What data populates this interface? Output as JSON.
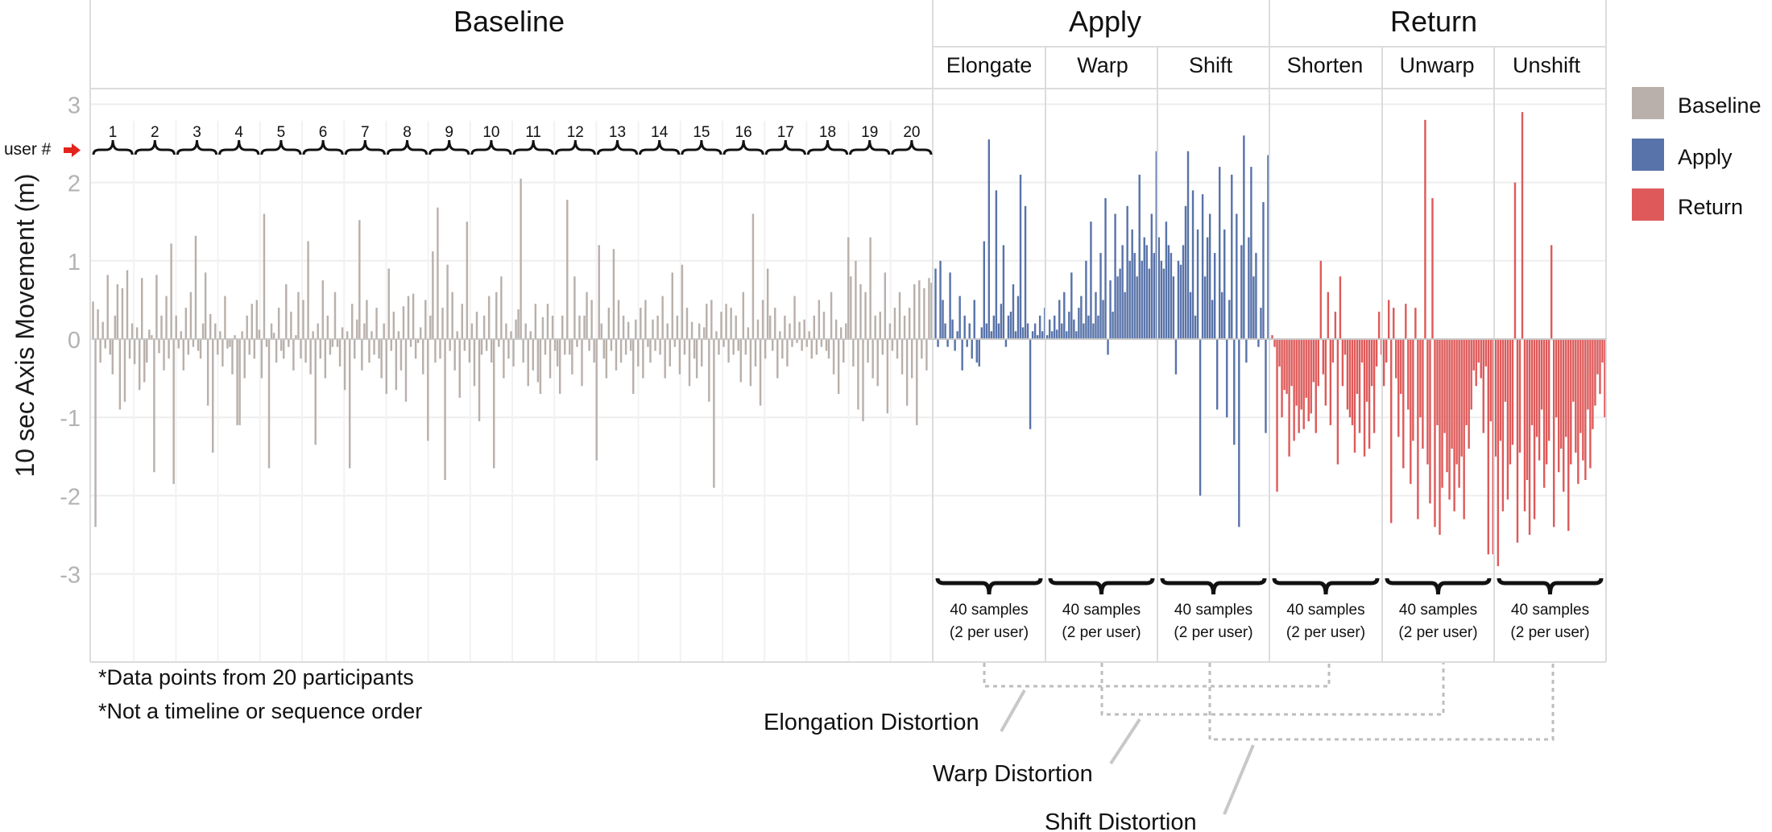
{
  "chart_data": {
    "type": "bar",
    "ylabel": "10 sec Axis Movement (m)",
    "ylim": [
      -4.2,
      3.2
    ],
    "yticks": [
      "3",
      "2",
      "1",
      "0",
      "-1",
      "-2",
      "-3"
    ],
    "yticks_values": [
      3,
      2,
      1,
      0,
      -1,
      -2,
      -3
    ],
    "grid": true,
    "legend_position": "right",
    "legend": [
      {
        "label": "Baseline",
        "color": "#b9b0ab"
      },
      {
        "label": "Apply",
        "color": "#5873a9"
      },
      {
        "label": "Return",
        "color": "#de5a5a"
      }
    ],
    "groups": [
      {
        "label": "Baseline"
      },
      {
        "label": "Apply"
      },
      {
        "label": "Return"
      }
    ],
    "user_marker": "user #",
    "user_labels": [
      "1",
      "2",
      "3",
      "4",
      "5",
      "6",
      "7",
      "8",
      "9",
      "10",
      "11",
      "12",
      "13",
      "14",
      "15",
      "16",
      "17",
      "18",
      "19",
      "20"
    ],
    "conditions": [
      {
        "label": "Elongate",
        "group": "Apply"
      },
      {
        "label": "Warp",
        "group": "Apply"
      },
      {
        "label": "Shift",
        "group": "Apply"
      },
      {
        "label": "Shorten",
        "group": "Return"
      },
      {
        "label": "Unwarp",
        "group": "Return"
      },
      {
        "label": "Unshift",
        "group": "Return"
      }
    ],
    "sample_note_line1": "40 samples",
    "sample_note_line2": "(2 per user)",
    "footnotes": [
      "*Data points from 20 participants",
      "*Not a timeline or sequence order"
    ],
    "distortion_labels": [
      "Elongation Distortion",
      "Warp Distortion",
      "Shift Distortion"
    ],
    "series": [
      {
        "name": "Baseline",
        "values": [
          0.48,
          -2.4,
          0.38,
          -0.3,
          0.22,
          -0.12,
          0.82,
          -0.2,
          -0.45,
          0.3,
          0.7,
          -0.9,
          0.65,
          -0.8,
          0.88,
          -0.25,
          0.2,
          -0.32,
          0.15,
          -0.65,
          0.78,
          -0.55,
          -0.3,
          0.12,
          0.05,
          -1.7,
          0.82,
          -0.18,
          0.3,
          -0.4,
          0.55,
          -0.25,
          1.22,
          -1.85,
          0.3,
          -0.12,
          0.1,
          -0.4,
          0.4,
          -0.2,
          0.6,
          -0.1,
          1.32,
          -0.15,
          -0.25,
          0.2,
          0.85,
          -0.85,
          0.32,
          -1.45,
          0.2,
          -0.2,
          0.1,
          -0.35,
          0.55,
          -0.12,
          -0.1,
          -0.45,
          0.05,
          -1.1,
          -1.1,
          0.1,
          -0.5,
          0.3,
          -0.2,
          0.45,
          -0.25,
          0.5,
          0.12,
          -0.5,
          1.6,
          -0.1,
          -1.65,
          0.2,
          0.08,
          -0.3,
          0.4,
          -0.15,
          -0.25,
          0.7,
          -0.1,
          0.35,
          -0.4,
          0.05,
          0.6,
          -0.25,
          0.5,
          -0.3,
          1.25,
          -0.45,
          0.1,
          -1.35,
          0.2,
          -0.25,
          0.75,
          -0.5,
          0.3,
          -0.2,
          -0.1,
          0.6,
          -0.1,
          -0.35,
          0.15,
          -0.65,
          0.1,
          -1.65,
          0.45,
          -0.25,
          0.25,
          1.52,
          -0.4,
          0.2,
          0.5,
          -0.3,
          0.1,
          -0.2,
          0.4,
          -0.25,
          -0.5,
          0.2,
          -0.7,
          0.9,
          -0.15,
          0.35,
          -0.65,
          0.1,
          -0.4,
          0.42,
          -0.8,
          0.55,
          -0.1,
          0.58,
          -0.25,
          -0.05,
          0.15,
          -0.45,
          0.5,
          -1.3,
          0.3,
          1.12,
          -0.3,
          1.68,
          -0.25,
          0.4,
          -1.8,
          0.95,
          -0.15,
          0.6,
          -0.4,
          0.1,
          -0.75,
          0.45,
          -0.15,
          1.5,
          -0.3,
          0.2,
          -0.6,
          0.35,
          -1.05,
          -0.2,
          0.3,
          -0.15,
          0.55,
          -0.3,
          -1.65,
          0.6,
          -0.1,
          0.8,
          -0.5,
          0.2,
          -0.25,
          0.1,
          -0.35,
          0.25,
          0.38,
          2.05,
          -0.3,
          0.2,
          -0.6,
          0.1,
          -0.4,
          0.45,
          -0.55,
          -0.7,
          0.28,
          -0.2,
          0.45,
          -0.5,
          0.3,
          -0.15,
          -0.35,
          -0.7,
          0.3,
          -0.2,
          1.78,
          -0.2,
          -0.45,
          0.8,
          -0.1,
          0.3,
          -0.6,
          0.3,
          0.6,
          -0.15,
          0.5,
          -0.3,
          -1.55,
          1.2,
          0.2,
          -0.25,
          -0.5,
          0.4,
          -0.15,
          1.15,
          -0.4,
          0.5,
          -0.3,
          0.3,
          -0.2,
          0.22,
          -0.15,
          -0.7,
          0.25,
          -0.35,
          0.4,
          -0.5,
          0.5,
          -0.1,
          -0.3,
          0.25,
          -0.15,
          0.3,
          -0.2,
          0.55,
          -0.5,
          0.2,
          -0.35,
          0.85,
          -0.1,
          0.3,
          -0.45,
          0.95,
          -0.2,
          0.4,
          -0.6,
          0.22,
          -0.25,
          -0.5,
          0.2,
          -0.35,
          0.15,
          0.45,
          -0.8,
          0.5,
          -1.9,
          0.1,
          -0.2,
          0.35,
          -0.1,
          0.45,
          -0.3,
          0.4,
          -0.2,
          0.3,
          -0.15,
          -0.55,
          0.6,
          -0.2,
          0.15,
          -0.6,
          1.6,
          -0.35,
          0.25,
          -0.85,
          0.5,
          -0.25,
          0.9,
          0.3,
          -0.15,
          0.4,
          -0.5,
          0.1,
          -0.25,
          0.3,
          -0.35,
          0.2,
          -0.1,
          0.55,
          -0.05,
          0.22,
          -0.15,
          0.25,
          -0.1,
          0.1,
          -0.25,
          0.3,
          -0.2,
          0.5,
          -0.1,
          0.35,
          -0.15,
          -0.25,
          0.6,
          -0.45,
          0.25,
          -0.7,
          0.15,
          -0.3,
          0.2,
          1.3,
          0.8,
          -0.35,
          1.0,
          -0.9,
          0.7,
          -1.05,
          0.6,
          -0.3,
          1.3,
          -0.5,
          0.3,
          -0.6,
          0.35,
          -0.2,
          0.85,
          -0.95,
          0.2,
          -0.15,
          0.4,
          -0.25,
          0.6,
          -0.45,
          0.3,
          -0.85,
          0.4,
          -0.5,
          0.7,
          -1.1,
          0.75,
          -0.25,
          0.65,
          -0.4,
          0.78,
          0.72
        ]
      },
      {
        "name": "Apply",
        "values": [
          0.9,
          -0.1,
          1.0,
          0.5,
          0.2,
          -0.1,
          0.85,
          0.25,
          -0.15,
          0.1,
          0.55,
          -0.4,
          0.3,
          -0.1,
          0.2,
          -0.25,
          0.5,
          -0.3,
          -0.35,
          0.15,
          1.25,
          0.2,
          2.55,
          0.1,
          0.3,
          1.9,
          0.2,
          0.45,
          1.2,
          -0.1,
          0.3,
          0.35,
          0.7,
          0.1,
          0.55,
          2.1,
          0.15,
          1.7,
          0.2,
          -1.15,
          0.1,
          0.2,
          0.05,
          0.3,
          0.1,
          0.4,
          0.05,
          0.25,
          0.1,
          0.3,
          0.12,
          0.5,
          0.2,
          0.6,
          0.1,
          0.35,
          0.85,
          0.25,
          0.1,
          0.4,
          0.55,
          0.2,
          1.0,
          0.3,
          1.5,
          0.2,
          0.6,
          0.3,
          1.1,
          0.5,
          1.8,
          -0.2,
          0.75,
          0.35,
          1.6,
          0.8,
          0.9,
          1.2,
          0.6,
          1.7,
          1.0,
          1.4,
          1.1,
          0.8,
          2.1,
          1.0,
          1.3,
          1.2,
          0.9,
          1.6,
          1.1,
          2.4,
          1.3,
          1.0,
          0.9,
          1.5,
          1.2,
          1.1,
          0.8,
          -0.45,
          1.0,
          0.95,
          1.2,
          1.7,
          2.4,
          0.6,
          1.9,
          0.3,
          1.4,
          -2.0,
          1.85,
          0.8,
          1.3,
          1.6,
          0.5,
          1.1,
          -0.9,
          2.2,
          0.6,
          1.4,
          -1.0,
          0.5,
          2.1,
          -1.35,
          1.6,
          -2.4,
          1.2,
          2.6,
          -0.3,
          1.3,
          2.2,
          0.8,
          1.1,
          -0.1,
          0.4,
          1.75,
          -1.2,
          2.35
        ]
      },
      {
        "name": "Return",
        "values": [
          0.05,
          -0.1,
          -1.95,
          -0.35,
          -1.0,
          -0.65,
          -0.7,
          -1.5,
          -0.6,
          -1.3,
          -0.85,
          -1.2,
          -0.9,
          -1.15,
          -0.75,
          -1.05,
          -0.95,
          -0.55,
          -1.2,
          -0.6,
          1.0,
          -0.45,
          -0.85,
          0.6,
          -1.1,
          -0.3,
          0.35,
          -1.6,
          0.8,
          -0.6,
          -0.2,
          -0.9,
          -1.0,
          -1.1,
          -1.45,
          -0.7,
          -1.2,
          -0.3,
          -1.5,
          -0.8,
          -1.4,
          -0.6,
          -1.2,
          -0.35,
          0.35,
          -0.2,
          -0.6,
          -0.3,
          0.5,
          -2.35,
          0.4,
          -0.5,
          -1.25,
          -0.7,
          -1.65,
          0.45,
          -0.9,
          -1.85,
          -1.3,
          0.4,
          -2.3,
          -1.0,
          -1.4,
          2.8,
          -1.6,
          -2.1,
          1.8,
          -2.4,
          -1.1,
          -2.5,
          -1.9,
          -1.2,
          -1.7,
          -2.05,
          -1.4,
          -2.2,
          -1.6,
          -1.9,
          -1.5,
          -2.3,
          -1.1,
          -1.4,
          -0.9,
          -0.4,
          -0.6,
          -0.3,
          -0.5,
          -1.2,
          -0.35,
          -2.75,
          -1.05,
          -2.75,
          -1.5,
          -2.9,
          -1.3,
          -2.2,
          -0.8,
          -2.05,
          -1.6,
          -1.35,
          2.0,
          -2.6,
          -1.45,
          2.9,
          -2.2,
          -1.8,
          -2.5,
          -1.1,
          -2.3,
          -1.25,
          -1.55,
          -0.9,
          -1.9,
          -1.6,
          -1.3,
          1.2,
          -2.4,
          -1.0,
          -1.7,
          -1.4,
          -1.95,
          -1.25,
          -2.45,
          -1.6,
          -0.8,
          -1.45,
          -1.85,
          -1.2,
          -1.55,
          -1.8,
          -0.9,
          -1.65,
          -1.15,
          -0.85,
          -0.45,
          -0.7,
          -0.3,
          -1.0
        ]
      }
    ]
  }
}
